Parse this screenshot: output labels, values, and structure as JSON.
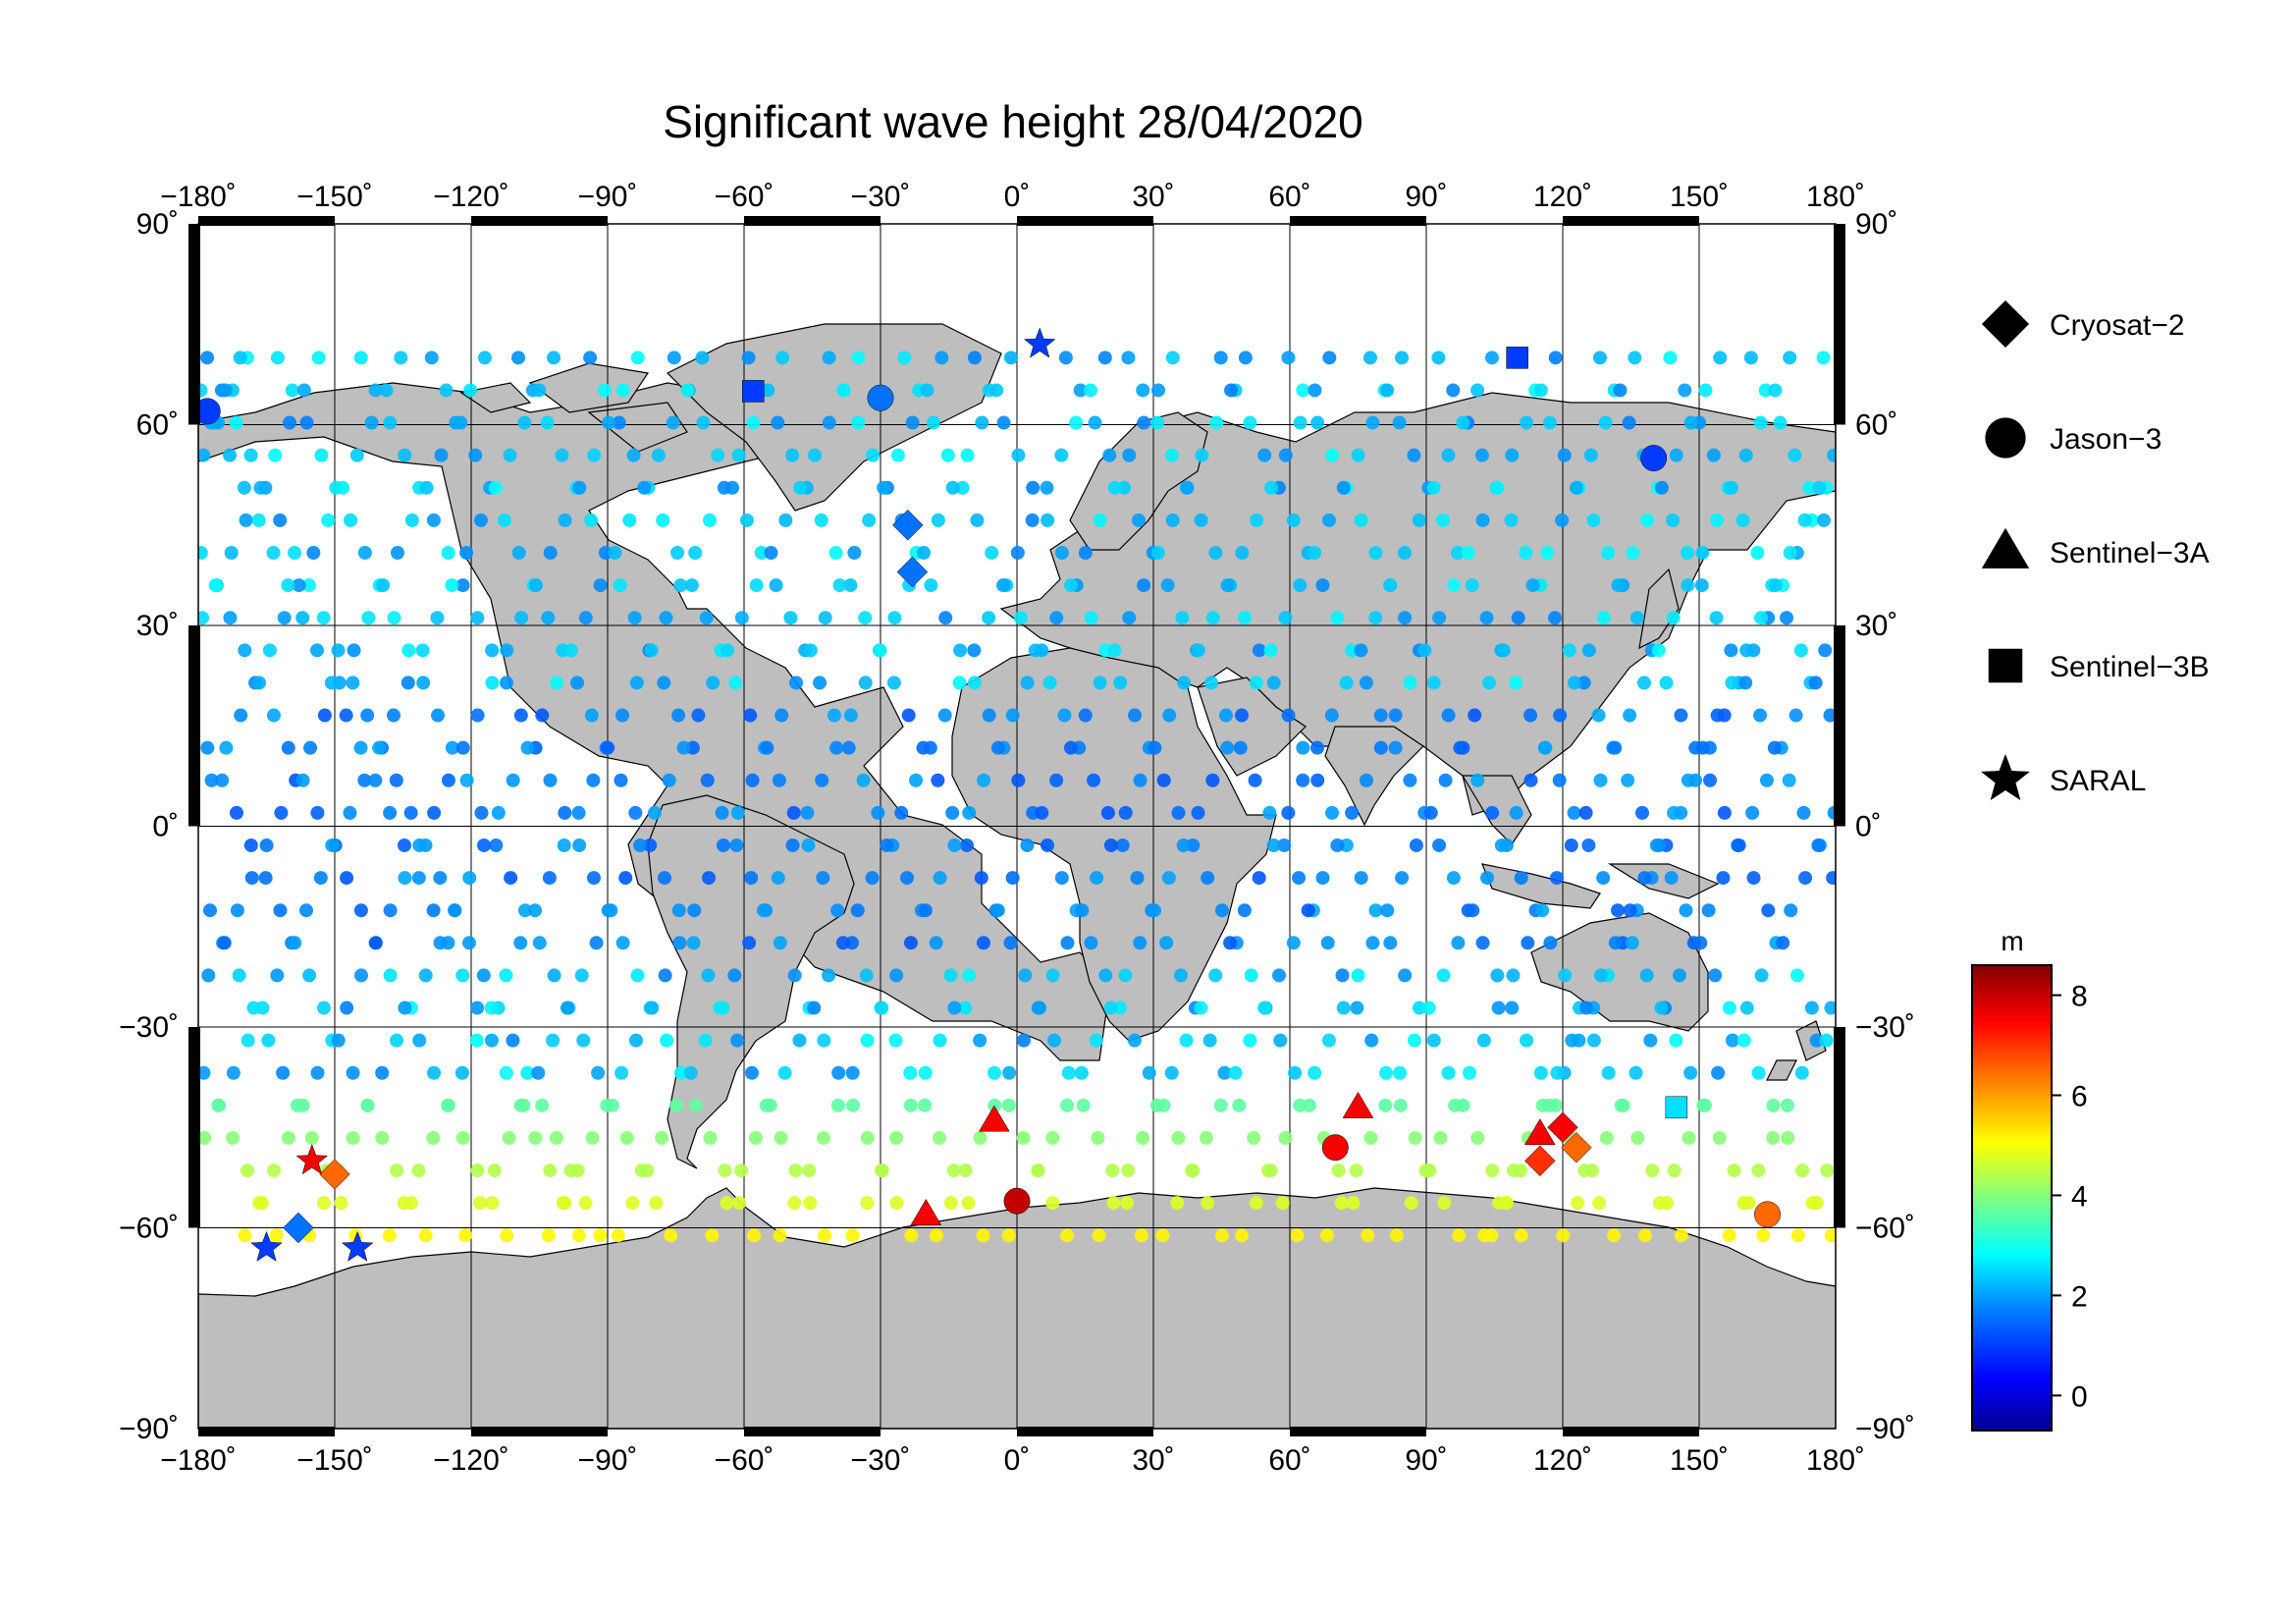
{
  "title": "Significant wave height 28/04/2020",
  "map": {
    "projection": "equirectangular",
    "lon_range": [
      -180,
      180
    ],
    "lat_range": [
      -90,
      90
    ],
    "lon_ticks": [
      {
        "value": -180,
        "label": "−180˚"
      },
      {
        "value": -150,
        "label": "−150˚"
      },
      {
        "value": -120,
        "label": "−120˚"
      },
      {
        "value": -90,
        "label": "−90˚"
      },
      {
        "value": -60,
        "label": "−60˚"
      },
      {
        "value": -30,
        "label": "−30˚"
      },
      {
        "value": 0,
        "label": "0˚"
      },
      {
        "value": 30,
        "label": "30˚"
      },
      {
        "value": 60,
        "label": "60˚"
      },
      {
        "value": 90,
        "label": "90˚"
      },
      {
        "value": 120,
        "label": "120˚"
      },
      {
        "value": 150,
        "label": "150˚"
      },
      {
        "value": 180,
        "label": "180˚"
      }
    ],
    "lat_ticks": [
      {
        "value": 90,
        "label": "90˚"
      },
      {
        "value": 60,
        "label": "60˚"
      },
      {
        "value": 30,
        "label": "30˚"
      },
      {
        "value": 0,
        "label": "0˚"
      },
      {
        "value": -30,
        "label": "−30˚"
      },
      {
        "value": -60,
        "label": "−60˚"
      },
      {
        "value": -90,
        "label": "−90˚"
      }
    ],
    "grid": true,
    "land_color": "#bebebe",
    "coast_color": "#000000",
    "ocean_color": "#ffffff"
  },
  "legend": {
    "placement": "right",
    "items": [
      {
        "label": "Cryosat−2",
        "symbol": "diamond"
      },
      {
        "label": "Jason−3",
        "symbol": "circle"
      },
      {
        "label": "Sentinel−3A",
        "symbol": "triangle"
      },
      {
        "label": "Sentinel−3B",
        "symbol": "square"
      },
      {
        "label": "SARAL",
        "symbol": "star"
      }
    ]
  },
  "colorbar": {
    "unit": "m",
    "min": -0.7,
    "max": 8.6,
    "ticks": [
      {
        "value": 0,
        "label": "0"
      },
      {
        "value": 2,
        "label": "2"
      },
      {
        "value": 4,
        "label": "4"
      },
      {
        "value": 6,
        "label": "6"
      },
      {
        "value": 8,
        "label": "8"
      }
    ],
    "colormap": [
      "#00008f",
      "#0000ff",
      "#0080ff",
      "#00ffff",
      "#80ff80",
      "#ffff00",
      "#ff8000",
      "#ff0000",
      "#800000"
    ]
  },
  "chart_data": {
    "type": "scatter",
    "title": "Significant wave height 28/04/2020",
    "xlabel": "",
    "ylabel": "",
    "xlim": [
      -180,
      180
    ],
    "ylim": [
      -90,
      90
    ],
    "value_unit": "m",
    "series": [
      {
        "name": "Cryosat−2",
        "symbol": "diamond",
        "points": [
          {
            "lon": -158,
            "lat": -60,
            "value": 1.5
          },
          {
            "lon": -150,
            "lat": -52,
            "value": 6.5
          },
          {
            "lon": -24,
            "lat": 45,
            "value": 1.5
          },
          {
            "lon": -23,
            "lat": 38,
            "value": 1.5
          },
          {
            "lon": 115,
            "lat": -50,
            "value": 7.0
          },
          {
            "lon": 120,
            "lat": -45,
            "value": 7.5
          },
          {
            "lon": 123,
            "lat": -48,
            "value": 6.5
          }
        ]
      },
      {
        "name": "Jason−3",
        "symbol": "circle",
        "points": [
          {
            "lon": -178,
            "lat": 62,
            "value": 1.0
          },
          {
            "lon": -30,
            "lat": 64,
            "value": 1.5
          },
          {
            "lon": 0,
            "lat": -56,
            "value": 8.0
          },
          {
            "lon": 140,
            "lat": 55,
            "value": 1.0
          },
          {
            "lon": 165,
            "lat": -58,
            "value": 6.5
          },
          {
            "lon": 70,
            "lat": -48,
            "value": 7.5
          }
        ]
      },
      {
        "name": "Sentinel−3A",
        "symbol": "triangle",
        "points": [
          {
            "lon": -5,
            "lat": -44,
            "value": 7.5
          },
          {
            "lon": -20,
            "lat": -58,
            "value": 7.5
          },
          {
            "lon": 75,
            "lat": -42,
            "value": 7.5
          },
          {
            "lon": 115,
            "lat": -46,
            "value": 7.5
          }
        ]
      },
      {
        "name": "Sentinel−3B",
        "symbol": "square",
        "points": [
          {
            "lon": -58,
            "lat": 65,
            "value": 1.0
          },
          {
            "lon": 110,
            "lat": 70,
            "value": 1.0
          },
          {
            "lon": 145,
            "lat": -42,
            "value": 2.5
          }
        ]
      },
      {
        "name": "SARAL",
        "symbol": "star",
        "points": [
          {
            "lon": -155,
            "lat": -50,
            "value": 7.5
          },
          {
            "lon": -165,
            "lat": -63,
            "value": 1.0
          },
          {
            "lon": -145,
            "lat": -63,
            "value": 1.0
          },
          {
            "lon": 5,
            "lat": 72,
            "value": 1.0
          }
        ]
      }
    ]
  }
}
